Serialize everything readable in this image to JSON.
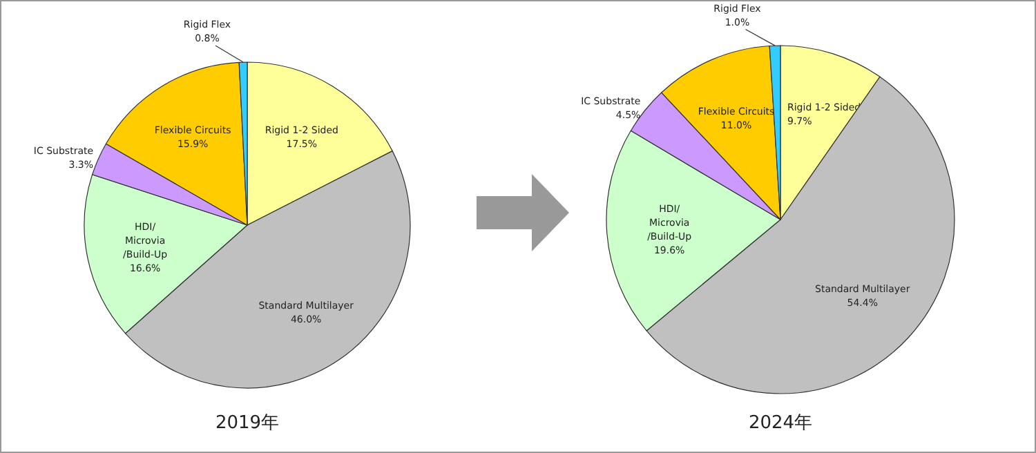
{
  "chart_data": [
    {
      "type": "pie",
      "title": "2019年",
      "categories": [
        "Rigid 1-2 Sided",
        "Standard Multilayer",
        "HDI/\nMicrovia\n/Build-Up",
        "IC Substrate",
        "Flexible Circuits",
        "Rigid Flex"
      ],
      "values": [
        17.5,
        46.0,
        16.6,
        3.3,
        15.9,
        0.8
      ],
      "value_labels": [
        "17.5%",
        "46.0%",
        "16.6%",
        "3.3%",
        "15.9%",
        "0.8%"
      ],
      "colors": [
        "#ffff99",
        "#c0c0c0",
        "#ccffcc",
        "#cc99ff",
        "#ffcc00",
        "#33ccff"
      ]
    },
    {
      "type": "pie",
      "title": "2024年",
      "categories": [
        "Rigid 1-2 Sided",
        "Standard Multilayer",
        "HDI/\nMicrovia\n/Build-Up",
        "IC Substrate",
        "Flexible Circuits",
        "Rigid Flex"
      ],
      "values": [
        9.7,
        54.4,
        19.6,
        4.5,
        11.0,
        1.0
      ],
      "value_labels": [
        "9.7%",
        "54.4%",
        "19.6%",
        "4.5%",
        "11.0%",
        "1.0%"
      ],
      "colors": [
        "#ffff99",
        "#c0c0c0",
        "#ccffcc",
        "#cc99ff",
        "#ffcc00",
        "#33ccff"
      ]
    }
  ]
}
